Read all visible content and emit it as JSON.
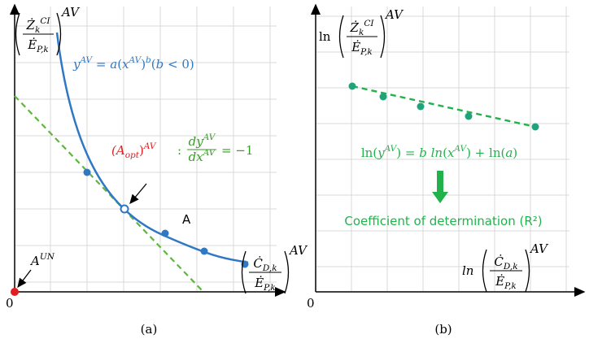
{
  "panel_a": {
    "y_label": {
      "numerator": [
        [
          "Ż",
          "i"
        ],
        [
          "k",
          "sub"
        ],
        [
          "CI",
          "sup"
        ]
      ],
      "denominator": [
        [
          "Ė",
          "i"
        ],
        [
          "P,k",
          "sub"
        ]
      ],
      "power": "AV"
    },
    "origin": "0",
    "origin_point_label": [
      [
        "A",
        "i"
      ],
      [
        "UN",
        "sup"
      ]
    ],
    "curve_equation": [
      [
        "y",
        "i"
      ],
      [
        "AV",
        "sup"
      ],
      [
        " = ",
        "n"
      ],
      [
        "a",
        "i"
      ],
      [
        "(",
        "n"
      ],
      [
        "x",
        "i"
      ],
      [
        "AV",
        "sup"
      ],
      [
        ")",
        "n"
      ],
      [
        "b",
        "sup"
      ],
      [
        "(",
        "n"
      ],
      [
        "b",
        "i"
      ],
      [
        " < 0)",
        "n"
      ]
    ],
    "optimum_label": [
      [
        "(A",
        "i"
      ],
      [
        "opt",
        "sub"
      ],
      [
        ")",
        "n"
      ],
      [
        "AV",
        "sup"
      ]
    ],
    "slope_label": {
      "prefix": ":",
      "numerator": [
        [
          "dy",
          "i"
        ],
        [
          "AV",
          "sup"
        ]
      ],
      "denominator": [
        [
          "dx",
          "i"
        ],
        [
          "AV",
          "sup"
        ]
      ],
      "suffix": "= −1"
    },
    "point_label": "A",
    "x_label": {
      "numerator": [
        [
          "Ċ",
          "i"
        ],
        [
          "D,k",
          "sub"
        ]
      ],
      "denominator": [
        [
          "Ė",
          "i"
        ],
        [
          "P,k",
          "sub"
        ]
      ],
      "power": "AV"
    },
    "caption": "(a)"
  },
  "panel_b": {
    "y_label": {
      "prefix": "ln",
      "numerator": [
        [
          "Ż",
          "i"
        ],
        [
          "k",
          "sub"
        ],
        [
          "CI",
          "sup"
        ]
      ],
      "denominator": [
        [
          "Ė",
          "i"
        ],
        [
          "P,k",
          "sub"
        ]
      ],
      "power": "AV"
    },
    "origin": "0",
    "regression_equation": [
      [
        "ln(",
        "n"
      ],
      [
        "y",
        "i"
      ],
      [
        "AV",
        "sup"
      ],
      [
        ") = ",
        "n"
      ],
      [
        "b ln",
        "i"
      ],
      [
        "(",
        "n"
      ],
      [
        "x",
        "i"
      ],
      [
        "AV",
        "sup"
      ],
      [
        ") + ln(",
        "n"
      ],
      [
        "a",
        "i"
      ],
      [
        ")",
        "n"
      ]
    ],
    "result": "Coefficient of determination (R²)",
    "x_label": {
      "prefix": "ln",
      "numerator": [
        [
          "Ċ",
          "i"
        ],
        [
          "D,k",
          "sub"
        ]
      ],
      "denominator": [
        [
          "Ė",
          "i"
        ],
        [
          "P,k",
          "sub"
        ]
      ],
      "power": "AV"
    },
    "caption": "(b)"
  }
}
